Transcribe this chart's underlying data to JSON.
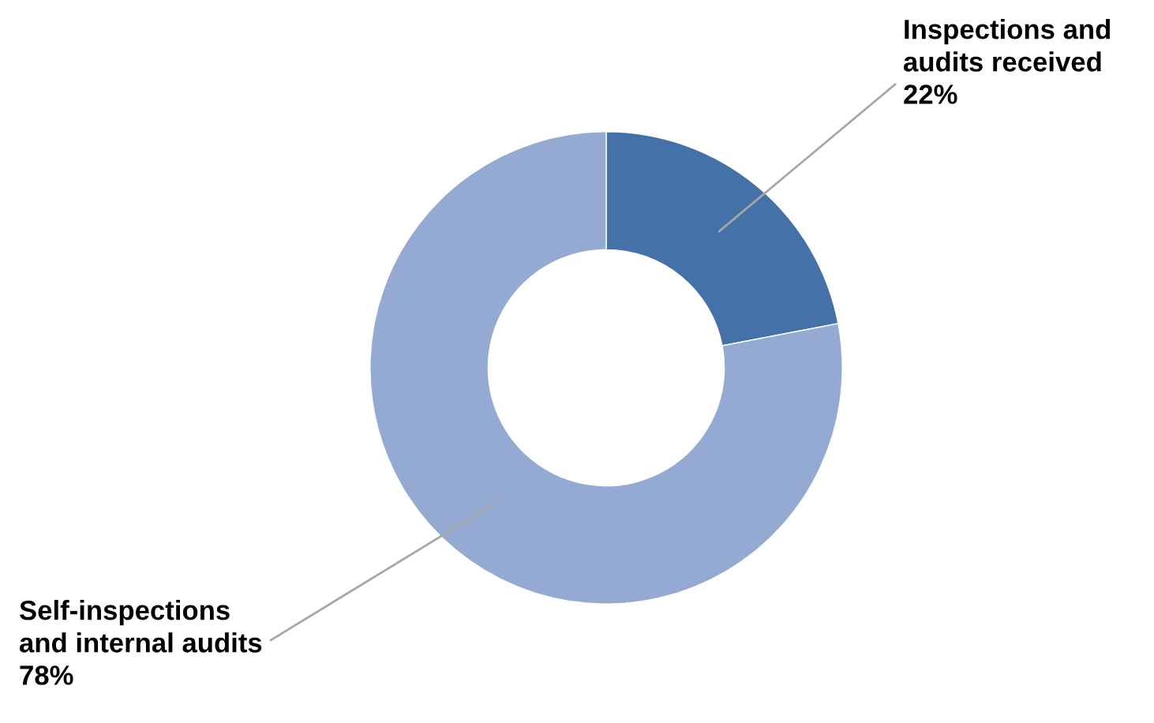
{
  "chart_data": {
    "type": "donut",
    "categories": [
      "Inspections and\naudits received",
      "Self-inspections\nand internal audits"
    ],
    "values": [
      22,
      78
    ],
    "colors": [
      "#4472a8",
      "#95aad2"
    ],
    "value_labels": [
      "22%",
      "78%"
    ]
  }
}
